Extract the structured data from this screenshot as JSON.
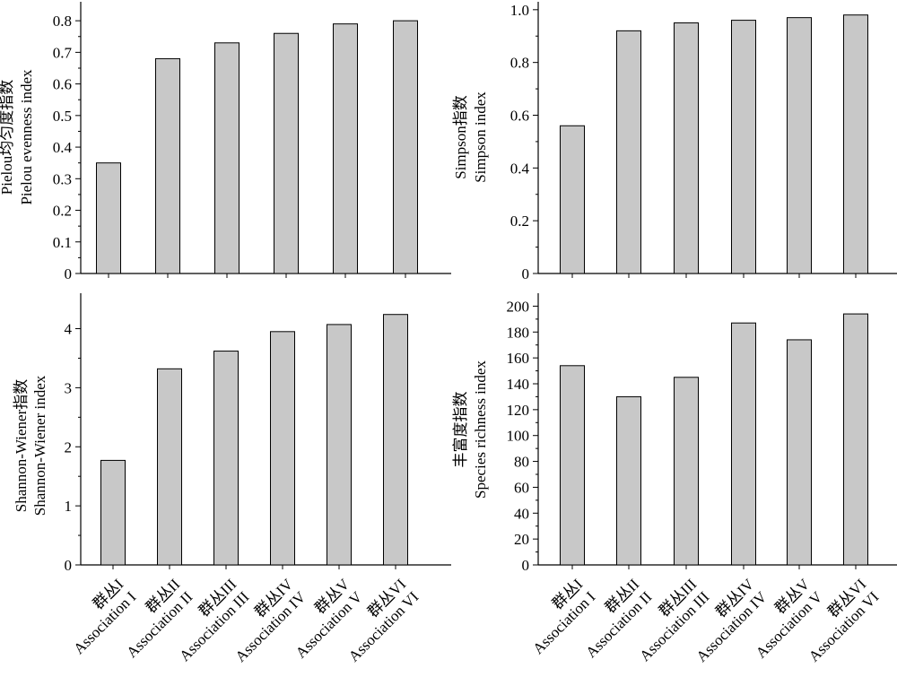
{
  "chart_data": [
    {
      "type": "bar",
      "ylabel": [
        "Pielou均匀度指数",
        "Pielou evenness index"
      ],
      "categories": [
        "群丛I",
        "群丛II",
        "群丛III",
        "群丛IV",
        "群丛V",
        "群丛VI"
      ],
      "values": [
        0.35,
        0.68,
        0.73,
        0.76,
        0.79,
        0.8
      ],
      "ylim": [
        0,
        0.86
      ],
      "yticks": [
        "0",
        "0.1",
        "0.2",
        "0.3",
        "0.4",
        "0.5",
        "0.6",
        "0.7",
        "0.8"
      ]
    },
    {
      "type": "bar",
      "ylabel": [
        "Simpson指数",
        "Simpson index"
      ],
      "categories": [
        "群丛I",
        "群丛II",
        "群丛III",
        "群丛IV",
        "群丛V",
        "群丛VI"
      ],
      "values": [
        0.56,
        0.92,
        0.95,
        0.96,
        0.97,
        0.98
      ],
      "ylim": [
        0,
        1.03
      ],
      "yticks": [
        "0",
        "0.2",
        "0.4",
        "0.6",
        "0.8",
        "1.0"
      ]
    },
    {
      "type": "bar",
      "ylabel": [
        "Shannon-Wiener指数",
        "Shannon-Wiener index"
      ],
      "categories": [
        "群丛I",
        "群丛II",
        "群丛III",
        "群丛IV",
        "群丛V",
        "群丛VI"
      ],
      "values": [
        1.77,
        3.32,
        3.62,
        3.95,
        4.07,
        4.24
      ],
      "ylim": [
        0,
        4.6
      ],
      "yticks": [
        "0",
        "1",
        "2",
        "3",
        "4"
      ]
    },
    {
      "type": "bar",
      "ylabel": [
        "丰富度指数",
        "Species richness index"
      ],
      "categories": [
        "群丛I",
        "群丛II",
        "群丛III",
        "群丛IV",
        "群丛V",
        "群丛VI"
      ],
      "values": [
        154,
        130,
        145,
        187,
        174,
        194
      ],
      "ylim": [
        0,
        210
      ],
      "yticks": [
        "0",
        "20",
        "40",
        "60",
        "80",
        "100",
        "120",
        "140",
        "160",
        "180",
        "200"
      ]
    }
  ],
  "x_labels": [
    {
      "cn": "群丛I",
      "en": "Association I"
    },
    {
      "cn": "群丛II",
      "en": "Association II"
    },
    {
      "cn": "群丛III",
      "en": "Association III"
    },
    {
      "cn": "群丛IV",
      "en": "Association IV"
    },
    {
      "cn": "群丛V",
      "en": "Association V"
    },
    {
      "cn": "群丛VI",
      "en": "Association VI"
    }
  ]
}
